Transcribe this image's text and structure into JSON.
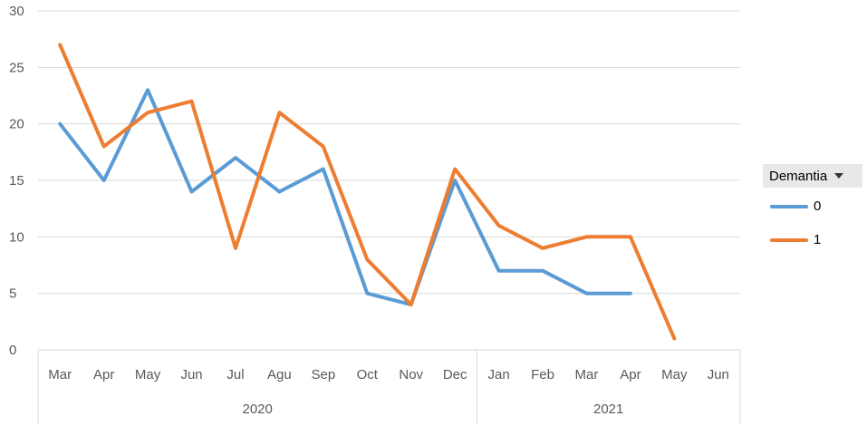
{
  "chart_data": {
    "type": "line",
    "title": "",
    "xlabel": "",
    "ylabel": "",
    "ylim": [
      0,
      30
    ],
    "yticks": [
      0,
      5,
      10,
      15,
      20,
      25,
      30
    ],
    "grid": true,
    "categories": [
      "Mar",
      "Apr",
      "May",
      "Jun",
      "Jul",
      "Agu",
      "Sep",
      "Oct",
      "Nov",
      "Dec",
      "Jan",
      "Feb",
      "Mar",
      "Apr",
      "May",
      "Jun"
    ],
    "groups": [
      {
        "label": "2020",
        "count": 10
      },
      {
        "label": "2021",
        "count": 6
      }
    ],
    "legend": {
      "title": "Demantia",
      "position": "right"
    },
    "series": [
      {
        "name": "0",
        "color": "#5b9bd5",
        "values": [
          20,
          15,
          23,
          14,
          17,
          14,
          16,
          5,
          4,
          15,
          7,
          7,
          5,
          5,
          null,
          null
        ]
      },
      {
        "name": "1",
        "color": "#ed7d31",
        "values": [
          27,
          18,
          21,
          22,
          9,
          21,
          18,
          8,
          4,
          16,
          11,
          9,
          10,
          10,
          1,
          null
        ]
      }
    ]
  }
}
